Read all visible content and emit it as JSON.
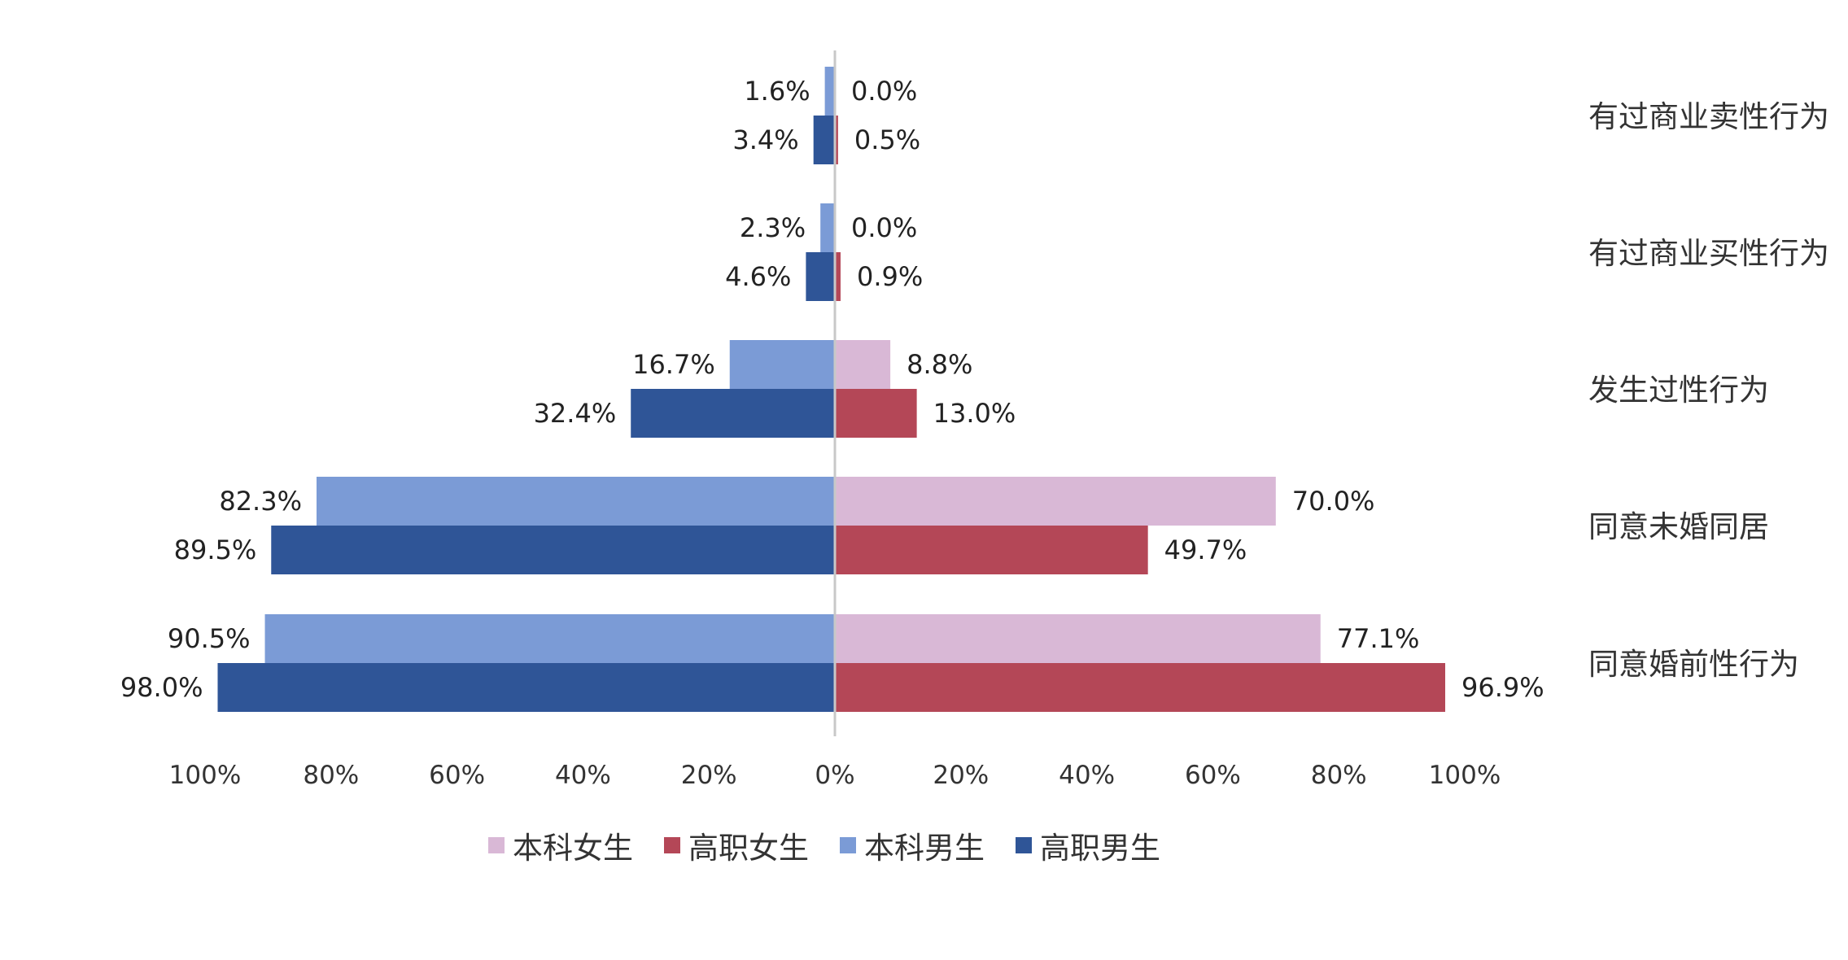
{
  "chart_data": {
    "type": "bar",
    "orientation": "horizontal-diverging",
    "categories": [
      "有过商业卖性行为",
      "有过商业买性行为",
      "发生过性行为",
      "同意未婚同居",
      "同意婚前性行为"
    ],
    "series": [
      {
        "name": "本科女生",
        "side": "right",
        "color": "#d9b8d6",
        "values": [
          0.0,
          0.0,
          8.8,
          70.0,
          77.1
        ],
        "labels": [
          "0.0%",
          "0.0%",
          "8.8%",
          "70.0%",
          "77.1%"
        ]
      },
      {
        "name": "高职女生",
        "side": "right",
        "color": "#b44757",
        "values": [
          0.5,
          0.9,
          13.0,
          49.7,
          96.9
        ],
        "labels": [
          "0.5%",
          "0.9%",
          "13.0%",
          "49.7%",
          "96.9%"
        ]
      },
      {
        "name": "本科男生",
        "side": "left",
        "color": "#7b9bd6",
        "values": [
          1.6,
          2.3,
          16.7,
          82.3,
          90.5
        ],
        "labels": [
          "1.6%",
          "2.3%",
          "16.7%",
          "82.3%",
          "90.5%"
        ]
      },
      {
        "name": "高职男生",
        "side": "left",
        "color": "#2f5597",
        "values": [
          3.4,
          4.6,
          32.4,
          89.5,
          98.0
        ],
        "labels": [
          "3.4%",
          "4.6%",
          "32.4%",
          "89.5%",
          "98.0%"
        ]
      }
    ],
    "x_ticks": [
      "100%",
      "80%",
      "60%",
      "40%",
      "20%",
      "0%",
      "20%",
      "40%",
      "60%",
      "80%",
      "100%"
    ],
    "xlim": [
      -100,
      100
    ],
    "legend_position": "bottom",
    "grid": false
  }
}
